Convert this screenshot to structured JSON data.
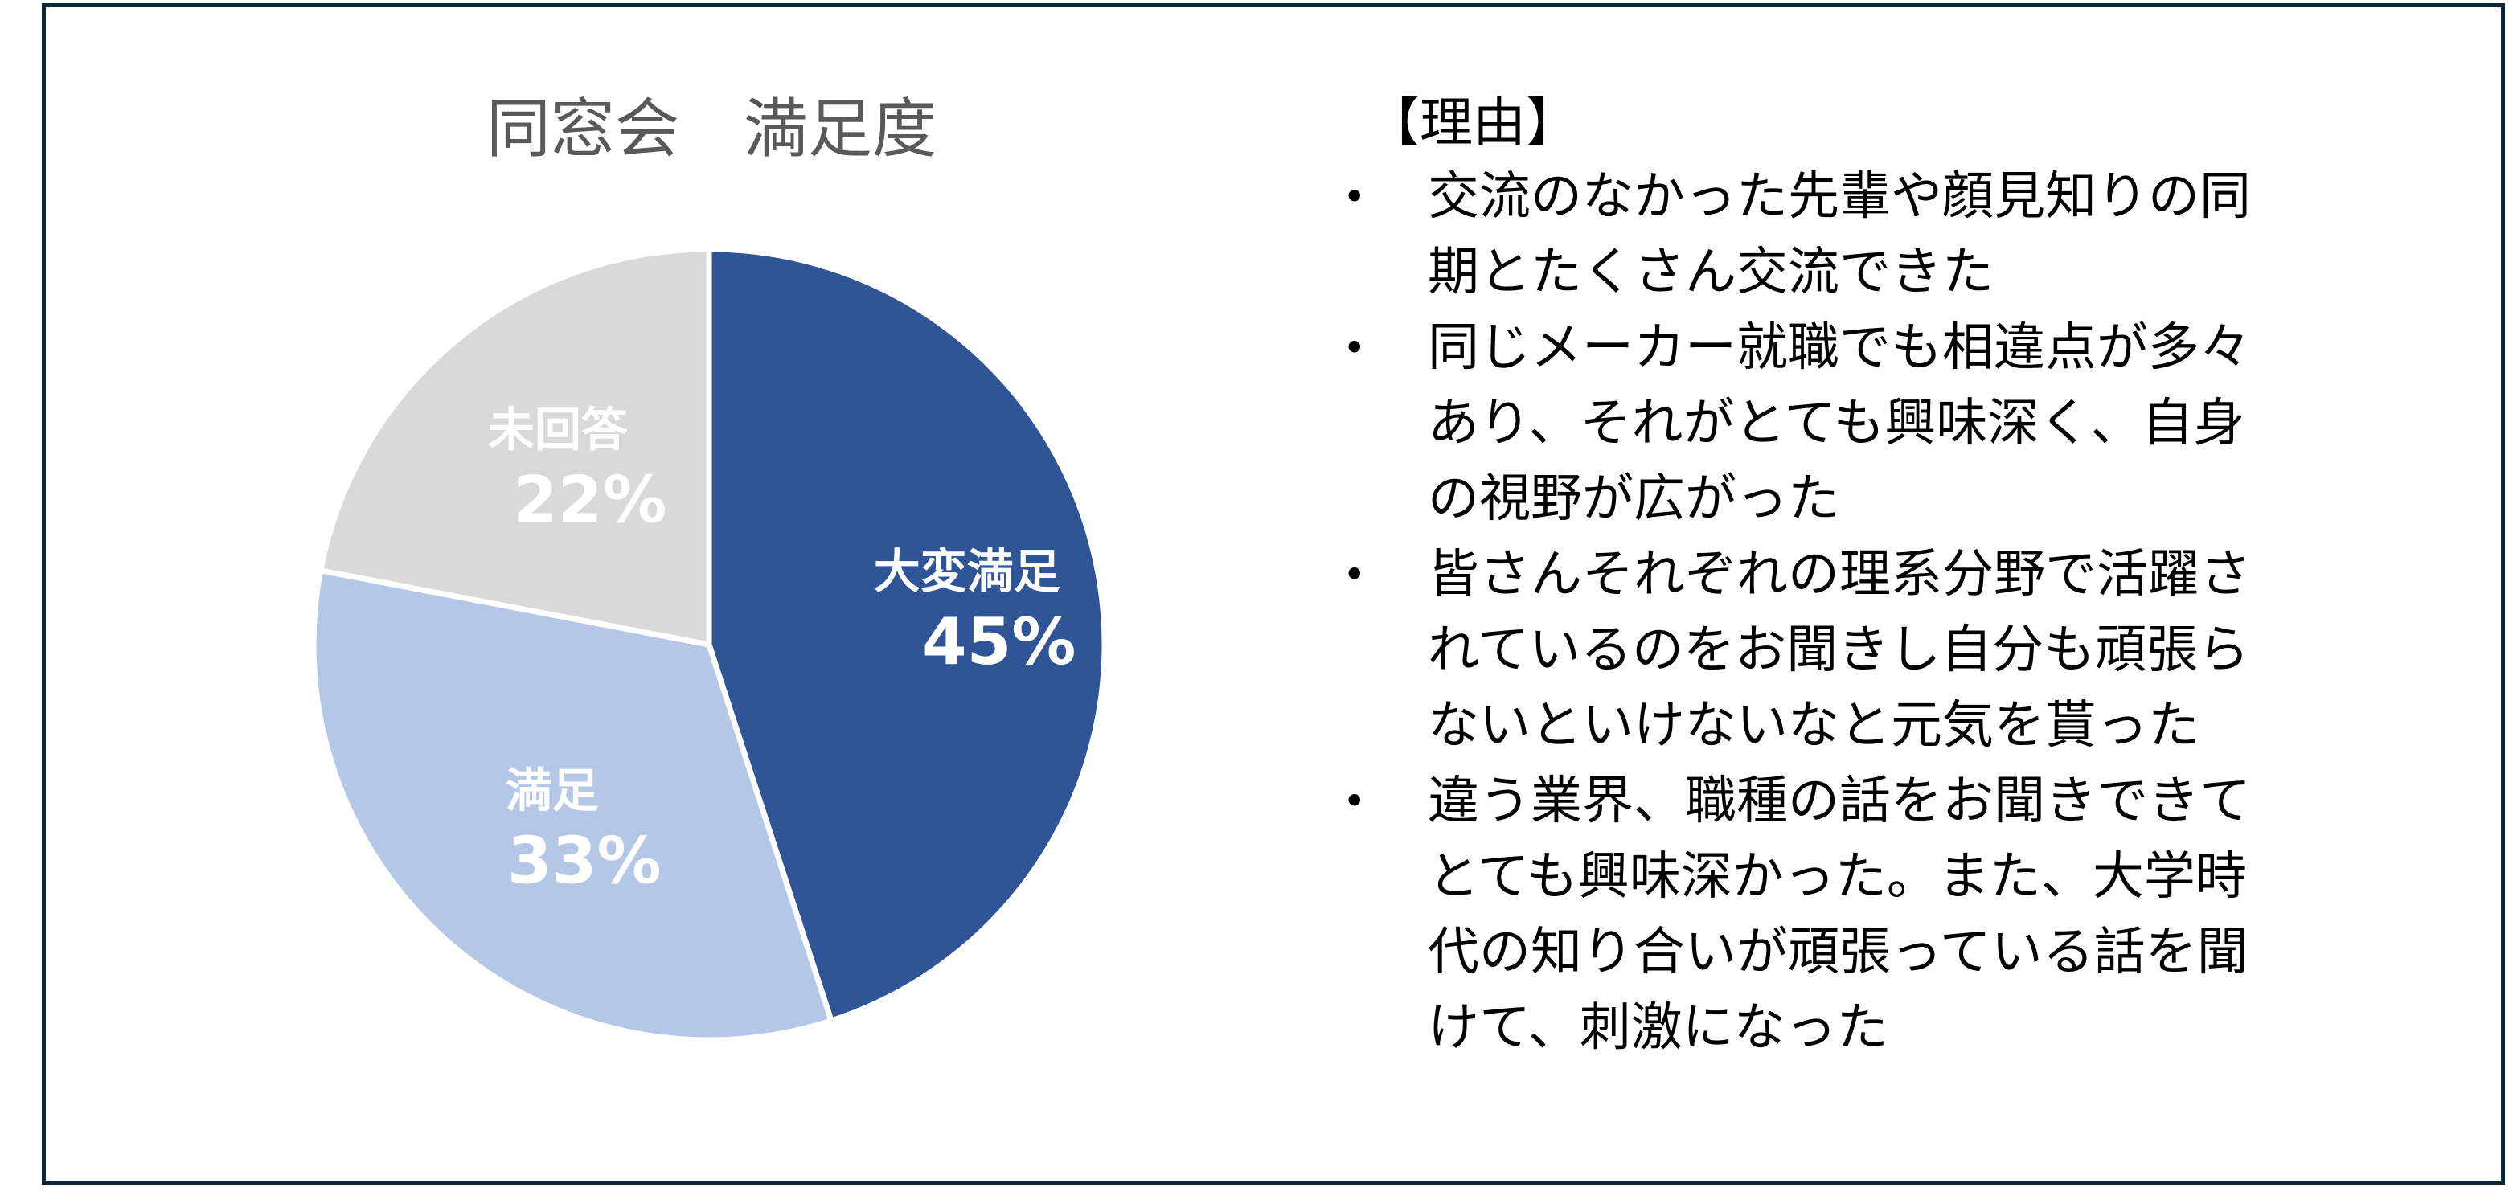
{
  "chart_data": {
    "type": "pie",
    "title": "同窓会　満足度",
    "start": "top",
    "direction": "clockwise",
    "slices": [
      {
        "label": "大変満足",
        "value": 45,
        "value_label": "45%",
        "color": "#2f5597"
      },
      {
        "label": "満足",
        "value": 33,
        "value_label": "33%",
        "color": "#b4c7e7"
      },
      {
        "label": "未回答",
        "value": 22,
        "value_label": "22%",
        "color": "#d9d9d9"
      }
    ],
    "label_color": "#ffffff",
    "title_color": "#595959"
  },
  "reasons": {
    "title": "【理由】",
    "items": [
      {
        "lines": [
          "交流のなかった先輩や顔見知りの同",
          "期とたくさん交流できた"
        ]
      },
      {
        "lines": [
          "同じメーカー就職でも相違点が多々",
          "あり、それがとても興味深く、自身",
          "の視野が広がった"
        ]
      },
      {
        "lines": [
          "皆さんそれぞれの理系分野で活躍さ",
          "れているのをお聞きし自分も頑張ら",
          "ないといけないなと元気を貰った"
        ]
      },
      {
        "lines": [
          "違う業界、職種の話をお聞きできて",
          "とても興味深かった。また、大学時",
          "代の知り合いが頑張っている話を聞",
          "けて、刺激になった"
        ]
      }
    ]
  }
}
